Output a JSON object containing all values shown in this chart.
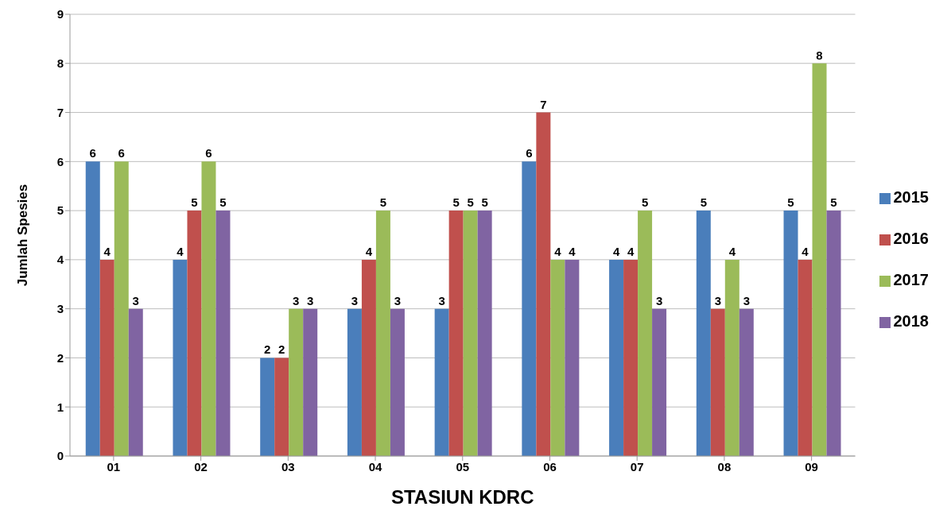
{
  "chart_data": {
    "type": "bar",
    "xlabel": "STASIUN KDRC",
    "ylabel": "Jumlah Spesies",
    "categories": [
      "01",
      "02",
      "03",
      "04",
      "05",
      "06",
      "07",
      "08",
      "09"
    ],
    "series": [
      {
        "name": "2015",
        "color": "#4a7ebb",
        "values": [
          6,
          4,
          2,
          3,
          3,
          6,
          4,
          5,
          5
        ]
      },
      {
        "name": "2016",
        "color": "#c0504d",
        "values": [
          4,
          5,
          2,
          4,
          5,
          7,
          4,
          3,
          4
        ]
      },
      {
        "name": "2017",
        "color": "#9bbb59",
        "values": [
          6,
          6,
          3,
          5,
          5,
          4,
          5,
          4,
          8
        ]
      },
      {
        "name": "2018",
        "color": "#8064a2",
        "values": [
          3,
          5,
          3,
          3,
          5,
          4,
          3,
          3,
          5
        ]
      }
    ],
    "ylim": [
      0,
      9
    ],
    "yticks": [
      0,
      1,
      2,
      3,
      4,
      5,
      6,
      7,
      8,
      9
    ],
    "grid": "y",
    "legend": "right",
    "data_labels": true
  }
}
